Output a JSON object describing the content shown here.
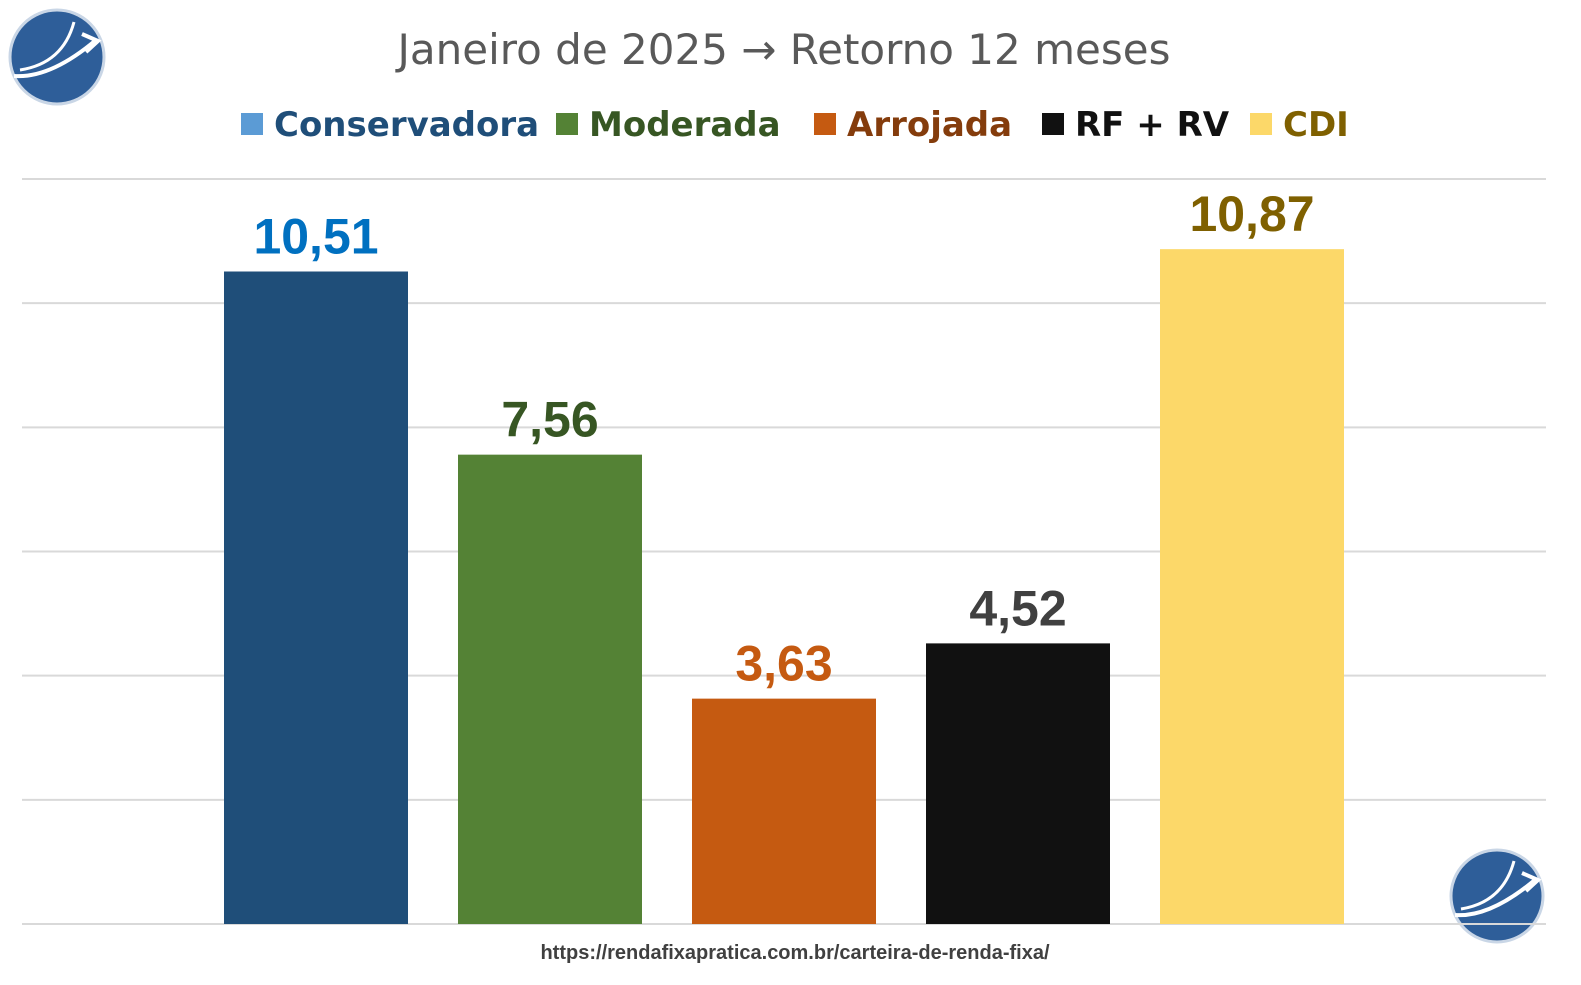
{
  "chart_data": {
    "type": "bar",
    "title": "Janeiro de 2025 → Retorno 12 meses",
    "categories": [
      "Conservadora",
      "Moderada",
      "Arrojada",
      "RF + RV",
      "CDI"
    ],
    "values": [
      10.51,
      7.56,
      3.63,
      4.52,
      10.87
    ],
    "value_labels": [
      "10,51",
      "7,56",
      "3,63",
      "4,52",
      "10,87"
    ],
    "ylim": [
      0,
      12
    ],
    "grid": true,
    "legend": "top",
    "series_colors": [
      "#1f4e79",
      "#548235",
      "#c55a11",
      "#111111",
      "#fcd869"
    ],
    "legend_marker_colors": [
      "#5b9bd5",
      "#548235",
      "#c55a11",
      "#111111",
      "#fcd869"
    ],
    "legend_text_colors": [
      "#1f4e79",
      "#375623",
      "#843c0c",
      "#111111",
      "#7f6000"
    ],
    "label_colors": [
      "#0070c0",
      "#375623",
      "#c55a11",
      "#404040",
      "#7f6000"
    ]
  },
  "footer_url": "https://rendafixapratica.com.br/carteira-de-renda-fixa/",
  "logo": {
    "icon": "arrow-up-right-logo",
    "color": "#2e5e99"
  }
}
